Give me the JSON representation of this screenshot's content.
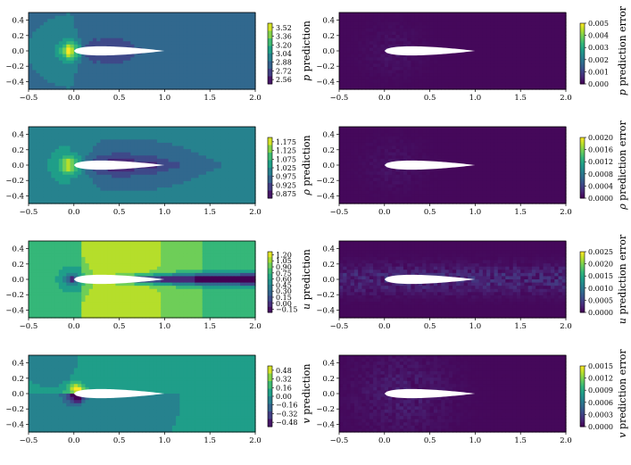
{
  "chart_data": [
    {
      "type": "heatmap",
      "panel": "p-prediction",
      "cbar_label": "p prediction",
      "cbar_var": "p",
      "cbar_suffix": "prediction",
      "cbar_ticks": [
        "3.52",
        "3.36",
        "3.20",
        "3.04",
        "2.88",
        "2.72",
        "2.56"
      ],
      "clim": [
        2.5,
        3.58
      ],
      "field": "pressure",
      "xlim": [
        -0.5,
        2.0
      ],
      "ylim": [
        -0.5,
        0.5
      ],
      "xticks": [
        "−0.5",
        "0.0",
        "0.5",
        "1.0",
        "1.5",
        "2.0"
      ],
      "yticks": [
        "0.4",
        "0.2",
        "0.0",
        "−0.2",
        "−0.4"
      ]
    },
    {
      "type": "heatmap",
      "panel": "p-error",
      "cbar_label": "p prediction error",
      "cbar_var": "p",
      "cbar_suffix": "prediction error",
      "cbar_ticks": [
        "0.005",
        "0.004",
        "0.003",
        "0.002",
        "0.001",
        "0.000"
      ],
      "clim": [
        0.0,
        0.0052
      ],
      "field": "error-low",
      "xlim": [
        -0.5,
        2.0
      ],
      "ylim": [
        -0.5,
        0.5
      ],
      "xticks": [
        "−0.5",
        "0.0",
        "0.5",
        "1.0",
        "1.5",
        "2.0"
      ],
      "yticks": [
        "0.4",
        "0.2",
        "0.0",
        "−0.2",
        "−0.4"
      ]
    },
    {
      "type": "heatmap",
      "panel": "rho-prediction",
      "cbar_label": "ρ prediction",
      "cbar_var": "ρ",
      "cbar_suffix": "prediction",
      "cbar_ticks": [
        "1.175",
        "1.125",
        "1.075",
        "1.025",
        "0.975",
        "0.925",
        "0.875"
      ],
      "clim": [
        0.85,
        1.2
      ],
      "field": "density",
      "xlim": [
        -0.5,
        2.0
      ],
      "ylim": [
        -0.5,
        0.5
      ],
      "xticks": [
        "−0.5",
        "0.0",
        "0.5",
        "1.0",
        "1.5",
        "2.0"
      ],
      "yticks": [
        "0.4",
        "0.2",
        "0.0",
        "−0.2",
        "−0.4"
      ]
    },
    {
      "type": "heatmap",
      "panel": "rho-error",
      "cbar_label": "ρ prediction error",
      "cbar_var": "ρ",
      "cbar_suffix": "prediction error",
      "cbar_ticks": [
        "0.0020",
        "0.0016",
        "0.0012",
        "0.0008",
        "0.0004",
        "0.0000"
      ],
      "clim": [
        0.0,
        0.0021
      ],
      "field": "error-low",
      "xlim": [
        -0.5,
        2.0
      ],
      "ylim": [
        -0.5,
        0.5
      ],
      "xticks": [
        "−0.5",
        "0.0",
        "0.5",
        "1.0",
        "1.5",
        "2.0"
      ],
      "yticks": [
        "0.4",
        "0.2",
        "0.0",
        "−0.2",
        "−0.4"
      ]
    },
    {
      "type": "heatmap",
      "panel": "u-prediction",
      "cbar_label": "u prediction",
      "cbar_var": "u",
      "cbar_suffix": "prediction",
      "cbar_ticks": [
        "1.20",
        "1.05",
        "0.90",
        "0.75",
        "0.60",
        "0.45",
        "0.30",
        "0.15",
        "0.00",
        "−0.15"
      ],
      "clim": [
        -0.22,
        1.25
      ],
      "field": "velocity-u",
      "xlim": [
        -0.5,
        2.0
      ],
      "ylim": [
        -0.5,
        0.5
      ],
      "xticks": [
        "−0.5",
        "0.0",
        "0.5",
        "1.0",
        "1.5",
        "2.0"
      ],
      "yticks": [
        "0.4",
        "0.2",
        "0.0",
        "−0.2",
        "−0.4"
      ]
    },
    {
      "type": "heatmap",
      "panel": "u-error",
      "cbar_label": "u prediction error",
      "cbar_var": "u",
      "cbar_suffix": "prediction error",
      "cbar_ticks": [
        "0.0025",
        "0.0020",
        "0.0015",
        "0.0010",
        "0.0005",
        "0.0000"
      ],
      "clim": [
        0.0,
        0.0027
      ],
      "field": "error-wake",
      "xlim": [
        -0.5,
        2.0
      ],
      "ylim": [
        -0.5,
        0.5
      ],
      "xticks": [
        "−0.5",
        "0.0",
        "0.5",
        "1.0",
        "1.5",
        "2.0"
      ],
      "yticks": [
        "0.4",
        "0.2",
        "0.0",
        "−0.2",
        "−0.4"
      ]
    },
    {
      "type": "heatmap",
      "panel": "v-prediction",
      "cbar_label": "v prediction",
      "cbar_var": "v",
      "cbar_suffix": "prediction",
      "cbar_ticks": [
        "0.48",
        "0.32",
        "0.16",
        "0.00",
        "−0.16",
        "−0.32",
        "−0.48"
      ],
      "clim": [
        -0.56,
        0.56
      ],
      "field": "velocity-v",
      "xlim": [
        -0.5,
        2.0
      ],
      "ylim": [
        -0.5,
        0.5
      ],
      "xticks": [
        "−0.5",
        "0.0",
        "0.5",
        "1.0",
        "1.5",
        "2.0"
      ],
      "yticks": [
        "0.4",
        "0.2",
        "0.0",
        "−0.2",
        "−0.4"
      ]
    },
    {
      "type": "heatmap",
      "panel": "v-error",
      "cbar_label": "v prediction error",
      "cbar_var": "v",
      "cbar_suffix": "prediction error",
      "cbar_ticks": [
        "0.0015",
        "0.0012",
        "0.0009",
        "0.0006",
        "0.0003",
        "0.0000"
      ],
      "clim": [
        0.0,
        0.0016
      ],
      "field": "error-mid",
      "xlim": [
        -0.5,
        2.0
      ],
      "ylim": [
        -0.5,
        0.5
      ],
      "xticks": [
        "−0.5",
        "0.0",
        "0.5",
        "1.0",
        "1.5",
        "2.0"
      ],
      "yticks": [
        "0.4",
        "0.2",
        "0.0",
        "−0.2",
        "−0.4"
      ]
    }
  ],
  "colormap": [
    "#440154",
    "#482878",
    "#3e4989",
    "#31688e",
    "#26828e",
    "#1f9e89",
    "#35b779",
    "#6ece58",
    "#b5de2b",
    "#fde725"
  ]
}
